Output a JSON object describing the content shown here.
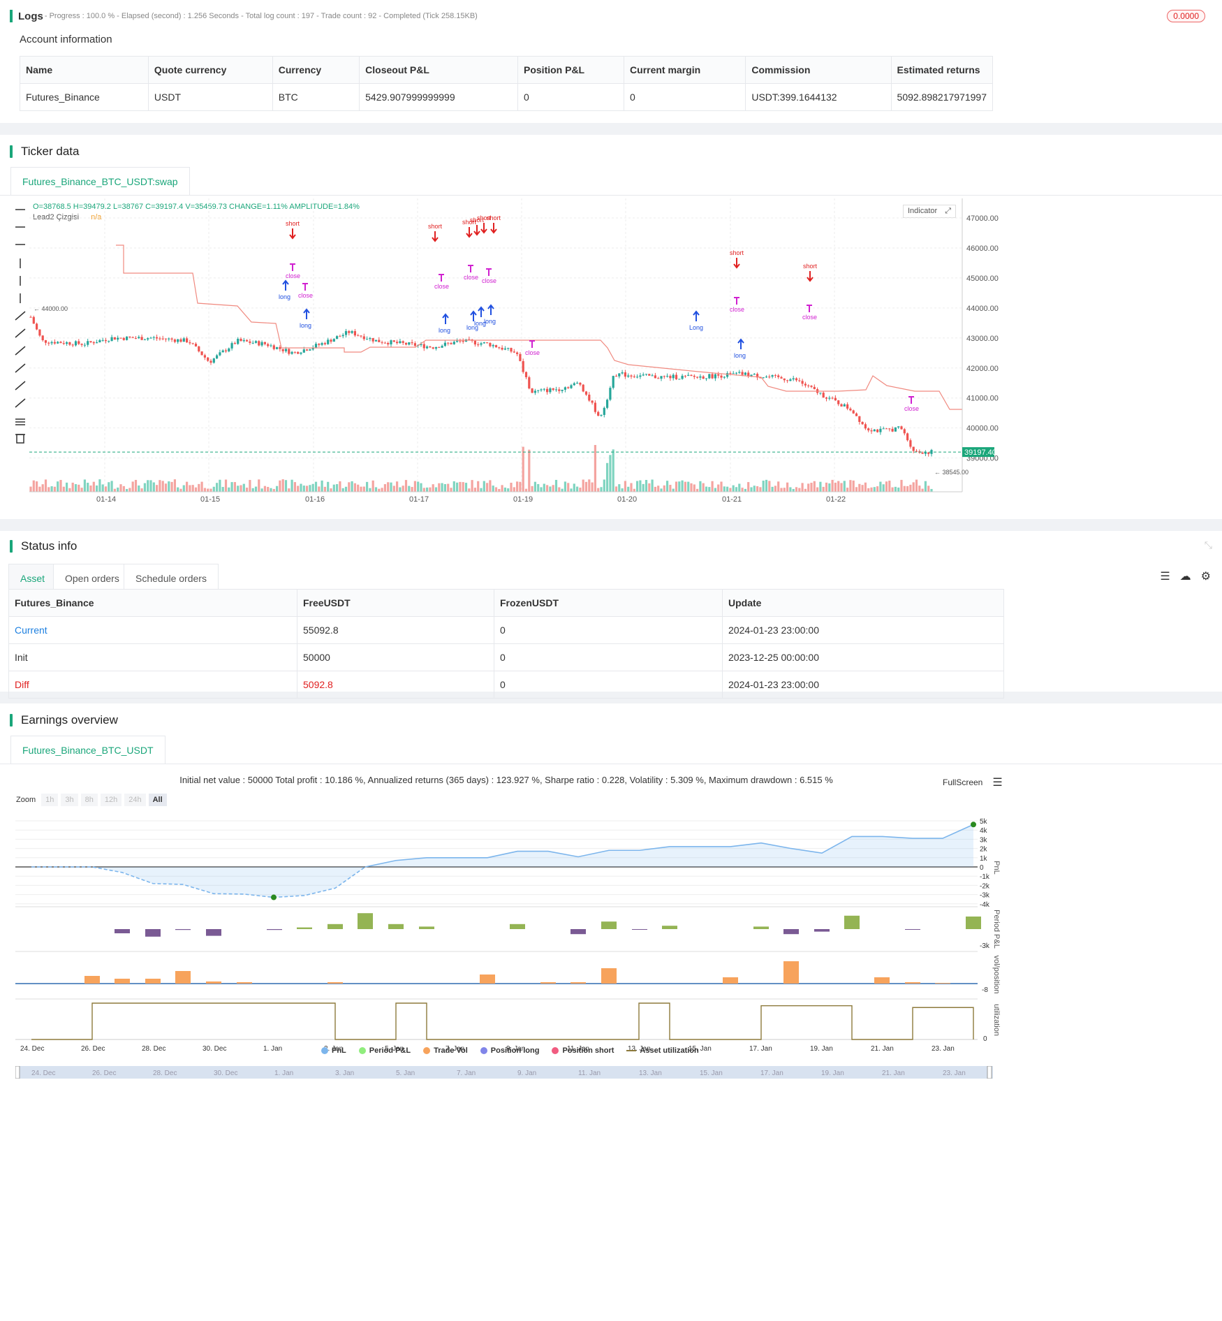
{
  "logs": {
    "title": "Logs",
    "status": "- Progress : 100.0 % - Elapsed (second) : 1.256  Seconds - Total log count : 197 - Trade count : 92 - Completed (Tick 258.15KB)",
    "badge": "0.0000"
  },
  "account": {
    "title": "Account information",
    "columns": [
      "Name",
      "Quote currency",
      "Currency",
      "Closeout P&L",
      "Position P&L",
      "Current margin",
      "Commission",
      "Estimated returns"
    ],
    "row": [
      "Futures_Binance",
      "USDT",
      "BTC",
      "5429.907999999999",
      "0",
      "0",
      "USDT:399.1644132",
      "5092.898217971997"
    ]
  },
  "ticker": {
    "title": "Ticker data",
    "tab": "Futures_Binance_BTC_USDT:swap",
    "ohlc": "O=38768.5 H=39479.2 L=38767 C=39197.4 V=35459.73 CHANGE=1.11% AMPLITUDE=1.84%",
    "legend_name": "Lead2 Çizgisi",
    "legend_value": "n/a",
    "indicator_btn": "Indicator",
    "price_labels": [
      "47000.00",
      "46000.00",
      "45000.00",
      "44000.00",
      "43000.00",
      "42000.00",
      "41000.00",
      "40000.00",
      "39000.00"
    ],
    "last_price": "39197.40",
    "low_marker": "38545.00",
    "high_marker": "44000.00",
    "dates": [
      "01-14",
      "01-15",
      "01-16",
      "01-17",
      "01-19",
      "01-20",
      "01-21",
      "01-22"
    ],
    "signals": [
      "short",
      "Short",
      "close",
      "long",
      "Long",
      "close"
    ]
  },
  "status": {
    "title": "Status info",
    "tabs": [
      "Asset",
      "Open orders",
      "Schedule orders"
    ],
    "columns": [
      "Futures_Binance",
      "FreeUSDT",
      "FrozenUSDT",
      "Update"
    ],
    "rows": [
      [
        "Current",
        "55092.8",
        "0",
        "2024-01-23 23:00:00"
      ],
      [
        "Init",
        "50000",
        "0",
        "2023-12-25 00:00:00"
      ],
      [
        "Diff",
        "5092.8",
        "0",
        "2024-01-23 23:00:00"
      ]
    ]
  },
  "earnings": {
    "title": "Earnings overview",
    "tab": "Futures_Binance_BTC_USDT",
    "summary": "Initial net value : 50000 Total profit : 10.186 %, Annualized returns (365 days) : 123.927 %, Sharpe ratio : 0.228, Volatility : 5.309 %, Maximum drawdown : 6.515 %",
    "fullscreen": "FullScreen",
    "zoom_label": "Zoom",
    "zoom_opts": [
      "1h",
      "3h",
      "8h",
      "12h",
      "24h",
      "All"
    ],
    "pnl_axis": [
      "5k",
      "4k",
      "3k",
      "2k",
      "1k",
      "0",
      "-1k",
      "-2k",
      "-3k",
      "-4k"
    ],
    "period_axis": "-3k",
    "vol_axis": "-8",
    "util_axis": "0",
    "axis_titles": [
      "PnL",
      "Period P&L",
      "vol/position",
      "utilization"
    ],
    "x_dates": [
      "24. Dec",
      "26. Dec",
      "28. Dec",
      "30. Dec",
      "1. Jan",
      "3. Jan",
      "5. Jan",
      "7. Jan",
      "9. Jan",
      "11. Jan",
      "13. Jan",
      "15. Jan",
      "17. Jan",
      "19. Jan",
      "21. Jan",
      "23. Jan"
    ],
    "legend": [
      "PnL",
      "Period P&L",
      "Trade Vol",
      "Position long",
      "Position short",
      "Asset utilization"
    ],
    "legend_colors": [
      "#7cb5ec",
      "#90ed7d",
      "#f7a35c",
      "#8085e9",
      "#f15c80",
      "#8d7a3c"
    ]
  }
}
